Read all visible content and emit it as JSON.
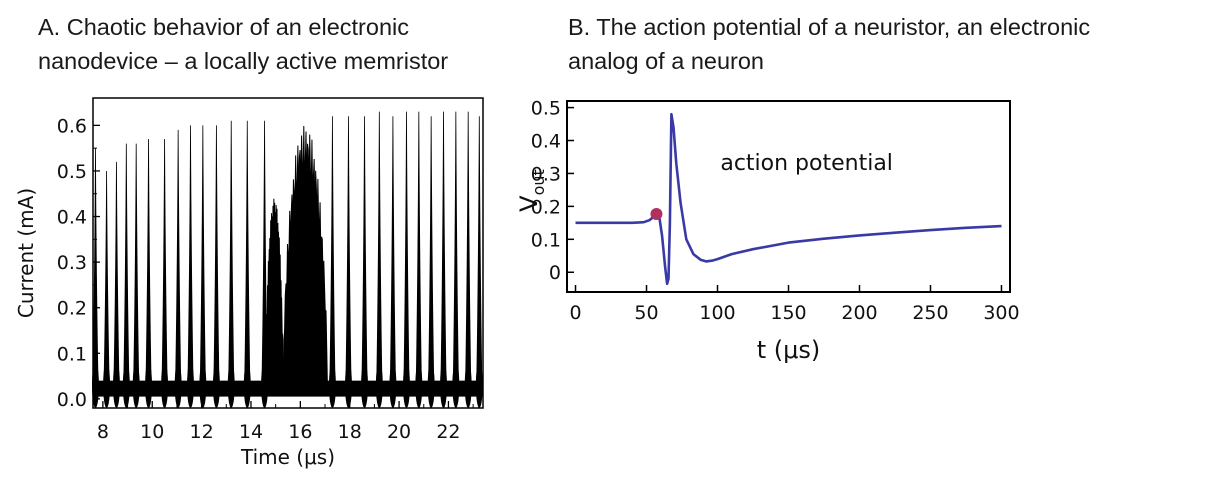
{
  "captions": {
    "a": "A. Chaotic behavior of an electronic\nnanodevice – a locally active memristor",
    "b": "B. The action potential of a neuristor, an electronic\nanalog of a neuron"
  },
  "chart_data": [
    {
      "id": "A",
      "type": "line",
      "xlabel": "Time (μs)",
      "ylabel": "Current (mA)",
      "xlim": [
        7.6,
        23.4
      ],
      "ylim": [
        -0.02,
        0.66
      ],
      "xticks": [
        8,
        10,
        12,
        14,
        16,
        18,
        20,
        22
      ],
      "yticks": [
        0.0,
        0.1,
        0.2,
        0.3,
        0.4,
        0.5,
        0.6
      ],
      "ytick_labels": [
        "0.0",
        "0.1",
        "0.2",
        "0.3",
        "0.4",
        "0.5",
        "0.6"
      ],
      "grid": false,
      "color": "#000000",
      "baseline_current": 0.02,
      "spikes": [
        {
          "t": 7.7,
          "peak": 0.55
        },
        {
          "t": 8.15,
          "peak": 0.5
        },
        {
          "t": 8.55,
          "peak": 0.52
        },
        {
          "t": 8.95,
          "peak": 0.56
        },
        {
          "t": 9.35,
          "peak": 0.56
        },
        {
          "t": 9.85,
          "peak": 0.57
        },
        {
          "t": 10.5,
          "peak": 0.57
        },
        {
          "t": 11.05,
          "peak": 0.59
        },
        {
          "t": 11.55,
          "peak": 0.6
        },
        {
          "t": 12.05,
          "peak": 0.6
        },
        {
          "t": 12.6,
          "peak": 0.6
        },
        {
          "t": 13.2,
          "peak": 0.61
        },
        {
          "t": 13.85,
          "peak": 0.61
        },
        {
          "t": 14.55,
          "peak": 0.61
        },
        {
          "t": 17.3,
          "peak": 0.62
        },
        {
          "t": 17.95,
          "peak": 0.62
        },
        {
          "t": 18.6,
          "peak": 0.62
        },
        {
          "t": 19.2,
          "peak": 0.63
        },
        {
          "t": 19.75,
          "peak": 0.62
        },
        {
          "t": 20.3,
          "peak": 0.63
        },
        {
          "t": 20.8,
          "peak": 0.63
        },
        {
          "t": 21.3,
          "peak": 0.62
        },
        {
          "t": 21.8,
          "peak": 0.63
        },
        {
          "t": 22.3,
          "peak": 0.63
        },
        {
          "t": 22.8,
          "peak": 0.63
        },
        {
          "t": 23.25,
          "peak": 0.62
        }
      ],
      "bursts": [
        {
          "t_start": 14.6,
          "t_end": 15.3,
          "peak": 0.44
        },
        {
          "t_start": 15.3,
          "t_end": 17.1,
          "peak": 0.6
        }
      ]
    },
    {
      "id": "B",
      "type": "line",
      "xlabel": "t (μs)",
      "ylabel": "V",
      "ylabel_subscript": "out",
      "xlim": [
        -6,
        306
      ],
      "ylim": [
        -0.06,
        0.52
      ],
      "xticks": [
        0,
        50,
        100,
        150,
        200,
        250,
        300
      ],
      "yticks": [
        0,
        0.1,
        0.2,
        0.3,
        0.4,
        0.5
      ],
      "ytick_labels": [
        "0",
        "0.1",
        "0.2",
        "0.3",
        "0.4",
        "0.5"
      ],
      "grid": false,
      "line_color": "#3a3aa6",
      "annotation": "action potential",
      "marker_color": "#b03060",
      "marker_point": {
        "x": 57,
        "y": 0.177
      },
      "x": [
        0,
        40,
        48,
        52,
        55,
        57,
        59,
        61,
        63,
        64.5,
        65.5,
        66.5,
        67.5,
        69,
        71,
        74,
        78,
        83,
        88,
        92,
        96,
        100,
        110,
        125,
        150,
        175,
        200,
        225,
        250,
        275,
        300
      ],
      "y": [
        0.15,
        0.15,
        0.152,
        0.158,
        0.168,
        0.177,
        0.168,
        0.11,
        0.02,
        -0.035,
        -0.02,
        0.15,
        0.48,
        0.44,
        0.33,
        0.21,
        0.1,
        0.055,
        0.038,
        0.033,
        0.035,
        0.04,
        0.055,
        0.07,
        0.09,
        0.102,
        0.112,
        0.12,
        0.128,
        0.135,
        0.14
      ]
    }
  ]
}
